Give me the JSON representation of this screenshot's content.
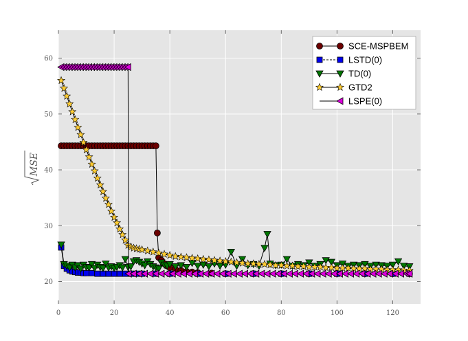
{
  "chart_data": {
    "type": "line",
    "title": "",
    "xlabel": "",
    "ylabel": "MSE",
    "ylabel_prefix": "√",
    "xlim": [
      0,
      130
    ],
    "ylim": [
      16,
      65
    ],
    "xticks": [
      0,
      20,
      40,
      60,
      80,
      100,
      120
    ],
    "yticks": [
      20,
      30,
      40,
      50,
      60
    ],
    "grid": true,
    "legend_position": "top-right",
    "series": [
      {
        "name": "SCE-MSPBEM",
        "color": "#6b0000",
        "marker": "circle",
        "points": [
          [
            1,
            44.3
          ],
          [
            2,
            44.3
          ],
          [
            3,
            44.3
          ],
          [
            4,
            44.3
          ],
          [
            5,
            44.3
          ],
          [
            6,
            44.3
          ],
          [
            7,
            44.3
          ],
          [
            8,
            44.3
          ],
          [
            9,
            44.3
          ],
          [
            10,
            44.3
          ],
          [
            11,
            44.3
          ],
          [
            12,
            44.3
          ],
          [
            13,
            44.3
          ],
          [
            14,
            44.3
          ],
          [
            15,
            44.3
          ],
          [
            16,
            44.3
          ],
          [
            17,
            44.3
          ],
          [
            18,
            44.3
          ],
          [
            19,
            44.3
          ],
          [
            20,
            44.3
          ],
          [
            21,
            44.3
          ],
          [
            22,
            44.3
          ],
          [
            23,
            44.3
          ],
          [
            24,
            44.3
          ],
          [
            25,
            44.3
          ],
          [
            26,
            44.3
          ],
          [
            27,
            44.3
          ],
          [
            28,
            44.3
          ],
          [
            29,
            44.3
          ],
          [
            30,
            44.3
          ],
          [
            31,
            44.3
          ],
          [
            32,
            44.3
          ],
          [
            33,
            44.3
          ],
          [
            34,
            44.3
          ],
          [
            35,
            44.3
          ],
          [
            35.5,
            28.7
          ],
          [
            36,
            24.3
          ],
          [
            37,
            23.8
          ],
          [
            38,
            23.2
          ],
          [
            39,
            22.8
          ],
          [
            40,
            22.5
          ],
          [
            42,
            22.2
          ],
          [
            44,
            22.0
          ],
          [
            46,
            21.8
          ],
          [
            48,
            21.7
          ],
          [
            50,
            21.6
          ],
          [
            55,
            21.5
          ],
          [
            60,
            21.4
          ],
          [
            70,
            21.4
          ],
          [
            80,
            21.4
          ],
          [
            90,
            21.4
          ],
          [
            100,
            21.4
          ],
          [
            110,
            21.4
          ],
          [
            120,
            21.4
          ],
          [
            126,
            21.4
          ]
        ]
      },
      {
        "name": "LSTD(0)",
        "color": "#0000ee",
        "marker": "square",
        "points": [
          [
            1,
            26.1
          ],
          [
            2,
            22.8
          ],
          [
            3,
            22.3
          ],
          [
            4,
            22.0
          ],
          [
            5,
            21.8
          ],
          [
            6,
            21.7
          ],
          [
            7,
            21.6
          ],
          [
            8,
            21.6
          ],
          [
            9,
            21.5
          ],
          [
            10,
            21.5
          ],
          [
            12,
            21.5
          ],
          [
            14,
            21.4
          ],
          [
            16,
            21.4
          ],
          [
            18,
            21.4
          ],
          [
            20,
            21.4
          ],
          [
            22,
            21.4
          ],
          [
            24,
            21.4
          ],
          [
            26,
            21.4
          ],
          [
            28,
            21.4
          ],
          [
            30,
            21.4
          ],
          [
            35,
            21.4
          ],
          [
            40,
            21.4
          ],
          [
            50,
            21.4
          ],
          [
            60,
            21.4
          ],
          [
            70,
            21.4
          ],
          [
            80,
            21.4
          ],
          [
            90,
            21.4
          ],
          [
            100,
            21.4
          ],
          [
            110,
            21.4
          ],
          [
            120,
            21.4
          ],
          [
            126,
            21.4
          ]
        ]
      },
      {
        "name": "TD(0)",
        "color": "#007700",
        "marker": "triangle-down",
        "points": [
          [
            1,
            26.6
          ],
          [
            2,
            23.1
          ],
          [
            3,
            22.8
          ],
          [
            4,
            22.5
          ],
          [
            5,
            23.0
          ],
          [
            6,
            22.5
          ],
          [
            7,
            22.9
          ],
          [
            8,
            22.3
          ],
          [
            9,
            23.0
          ],
          [
            10,
            22.6
          ],
          [
            11,
            22.5
          ],
          [
            12,
            23.1
          ],
          [
            13,
            22.4
          ],
          [
            14,
            23.0
          ],
          [
            15,
            22.6
          ],
          [
            16,
            22.4
          ],
          [
            17,
            23.2
          ],
          [
            18,
            22.5
          ],
          [
            19,
            22.7
          ],
          [
            20,
            22.4
          ],
          [
            21,
            22.6
          ],
          [
            22,
            22.9
          ],
          [
            23,
            22.5
          ],
          [
            24,
            24.0
          ],
          [
            25,
            22.6
          ],
          [
            26,
            22.7
          ],
          [
            27,
            23.6
          ],
          [
            28,
            23.8
          ],
          [
            29,
            23.5
          ],
          [
            30,
            23.2
          ],
          [
            31,
            22.9
          ],
          [
            32,
            23.6
          ],
          [
            33,
            23.1
          ],
          [
            34,
            22.7
          ],
          [
            35,
            22.5
          ],
          [
            36,
            22.3
          ],
          [
            37,
            23.4
          ],
          [
            38,
            23.0
          ],
          [
            39,
            22.8
          ],
          [
            40,
            23.1
          ],
          [
            42,
            22.7
          ],
          [
            44,
            22.9
          ],
          [
            46,
            22.6
          ],
          [
            48,
            23.3
          ],
          [
            50,
            22.8
          ],
          [
            52,
            23.0
          ],
          [
            54,
            22.7
          ],
          [
            56,
            23.2
          ],
          [
            58,
            22.8
          ],
          [
            60,
            23.0
          ],
          [
            62,
            25.3
          ],
          [
            64,
            22.8
          ],
          [
            66,
            24.0
          ],
          [
            68,
            22.9
          ],
          [
            70,
            23.1
          ],
          [
            72,
            22.8
          ],
          [
            74,
            26.0
          ],
          [
            75,
            28.5
          ],
          [
            76,
            23.2
          ],
          [
            78,
            22.9
          ],
          [
            80,
            23.0
          ],
          [
            82,
            24.0
          ],
          [
            84,
            22.8
          ],
          [
            86,
            23.1
          ],
          [
            88,
            22.9
          ],
          [
            90,
            23.4
          ],
          [
            92,
            22.8
          ],
          [
            94,
            23.1
          ],
          [
            96,
            23.8
          ],
          [
            98,
            23.5
          ],
          [
            100,
            22.9
          ],
          [
            102,
            23.2
          ],
          [
            104,
            22.8
          ],
          [
            106,
            23.0
          ],
          [
            108,
            22.9
          ],
          [
            110,
            23.1
          ],
          [
            112,
            22.8
          ],
          [
            114,
            23.0
          ],
          [
            116,
            22.9
          ],
          [
            118,
            22.8
          ],
          [
            120,
            23.0
          ],
          [
            122,
            23.6
          ],
          [
            124,
            22.8
          ],
          [
            126,
            22.7
          ]
        ]
      },
      {
        "name": "GTD2",
        "color": "#ffcc33",
        "marker": "star",
        "points": [
          [
            1,
            56.0
          ],
          [
            2,
            54.6
          ],
          [
            3,
            53.2
          ],
          [
            4,
            51.8
          ],
          [
            5,
            50.4
          ],
          [
            6,
            49.0
          ],
          [
            7,
            47.6
          ],
          [
            8,
            46.3
          ],
          [
            9,
            44.9
          ],
          [
            10,
            43.6
          ],
          [
            11,
            42.3
          ],
          [
            12,
            41.0
          ],
          [
            13,
            39.8
          ],
          [
            14,
            38.5
          ],
          [
            15,
            37.3
          ],
          [
            16,
            36.1
          ],
          [
            17,
            34.9
          ],
          [
            18,
            33.8
          ],
          [
            19,
            32.6
          ],
          [
            20,
            31.5
          ],
          [
            21,
            30.5
          ],
          [
            22,
            29.4
          ],
          [
            23,
            28.4
          ],
          [
            24,
            27.4
          ],
          [
            25,
            26.5
          ],
          [
            26,
            26.2
          ],
          [
            27,
            26.0
          ],
          [
            28,
            25.9
          ],
          [
            29,
            25.8
          ],
          [
            30,
            25.7
          ],
          [
            32,
            25.5
          ],
          [
            34,
            25.3
          ],
          [
            36,
            25.1
          ],
          [
            38,
            24.9
          ],
          [
            40,
            24.7
          ],
          [
            42,
            24.5
          ],
          [
            44,
            24.4
          ],
          [
            46,
            24.3
          ],
          [
            48,
            24.2
          ],
          [
            50,
            24.1
          ],
          [
            52,
            24.0
          ],
          [
            54,
            23.9
          ],
          [
            56,
            23.8
          ],
          [
            58,
            23.7
          ],
          [
            60,
            23.6
          ],
          [
            62,
            23.5
          ],
          [
            64,
            23.4
          ],
          [
            66,
            23.3
          ],
          [
            68,
            23.2
          ],
          [
            70,
            23.2
          ],
          [
            72,
            23.1
          ],
          [
            74,
            23.1
          ],
          [
            76,
            23.0
          ],
          [
            78,
            22.9
          ],
          [
            80,
            22.9
          ],
          [
            82,
            22.8
          ],
          [
            84,
            22.8
          ],
          [
            86,
            22.7
          ],
          [
            88,
            22.7
          ],
          [
            90,
            22.6
          ],
          [
            92,
            22.6
          ],
          [
            94,
            22.6
          ],
          [
            96,
            22.5
          ],
          [
            98,
            22.5
          ],
          [
            100,
            22.4
          ],
          [
            102,
            22.4
          ],
          [
            104,
            22.4
          ],
          [
            106,
            22.3
          ],
          [
            108,
            22.3
          ],
          [
            110,
            22.3
          ],
          [
            112,
            22.2
          ],
          [
            114,
            22.2
          ],
          [
            116,
            22.2
          ],
          [
            118,
            22.1
          ],
          [
            120,
            22.1
          ],
          [
            122,
            22.1
          ],
          [
            124,
            22.0
          ],
          [
            126,
            22.0
          ]
        ]
      },
      {
        "name": "LSPE(0)",
        "color": "#dd00dd",
        "marker": "triangle-left",
        "points": [
          [
            1,
            58.4
          ],
          [
            2,
            58.4
          ],
          [
            3,
            58.4
          ],
          [
            4,
            58.4
          ],
          [
            5,
            58.4
          ],
          [
            6,
            58.4
          ],
          [
            7,
            58.4
          ],
          [
            8,
            58.4
          ],
          [
            9,
            58.4
          ],
          [
            10,
            58.4
          ],
          [
            11,
            58.4
          ],
          [
            12,
            58.4
          ],
          [
            13,
            58.4
          ],
          [
            14,
            58.4
          ],
          [
            15,
            58.4
          ],
          [
            16,
            58.4
          ],
          [
            17,
            58.4
          ],
          [
            18,
            58.4
          ],
          [
            19,
            58.4
          ],
          [
            20,
            58.4
          ],
          [
            21,
            58.4
          ],
          [
            22,
            58.4
          ],
          [
            23,
            58.4
          ],
          [
            24,
            58.4
          ],
          [
            25,
            58.4
          ],
          [
            25.2,
            21.4
          ],
          [
            27,
            21.4
          ],
          [
            29,
            21.4
          ],
          [
            31,
            21.4
          ],
          [
            33,
            21.4
          ],
          [
            35,
            21.4
          ],
          [
            37,
            21.4
          ],
          [
            39,
            21.4
          ],
          [
            41,
            21.4
          ],
          [
            43,
            21.4
          ],
          [
            45,
            21.4
          ],
          [
            47,
            21.4
          ],
          [
            49,
            21.4
          ],
          [
            51,
            21.4
          ],
          [
            53,
            21.4
          ],
          [
            55,
            21.4
          ],
          [
            57,
            21.4
          ],
          [
            59,
            21.4
          ],
          [
            61,
            21.4
          ],
          [
            63,
            21.4
          ],
          [
            65,
            21.4
          ],
          [
            67,
            21.4
          ],
          [
            69,
            21.4
          ],
          [
            71,
            21.4
          ],
          [
            73,
            21.4
          ],
          [
            75,
            21.4
          ],
          [
            77,
            21.4
          ],
          [
            79,
            21.4
          ],
          [
            81,
            21.4
          ],
          [
            83,
            21.4
          ],
          [
            85,
            21.4
          ],
          [
            87,
            21.4
          ],
          [
            89,
            21.4
          ],
          [
            91,
            21.4
          ],
          [
            93,
            21.4
          ],
          [
            95,
            21.4
          ],
          [
            97,
            21.4
          ],
          [
            99,
            21.4
          ],
          [
            101,
            21.4
          ],
          [
            103,
            21.4
          ],
          [
            105,
            21.4
          ],
          [
            107,
            21.4
          ],
          [
            109,
            21.4
          ],
          [
            111,
            21.4
          ],
          [
            113,
            21.4
          ],
          [
            115,
            21.4
          ],
          [
            117,
            21.4
          ],
          [
            119,
            21.4
          ],
          [
            121,
            21.4
          ],
          [
            123,
            21.4
          ],
          [
            125,
            21.4
          ],
          [
            126,
            21.4
          ]
        ]
      }
    ]
  }
}
